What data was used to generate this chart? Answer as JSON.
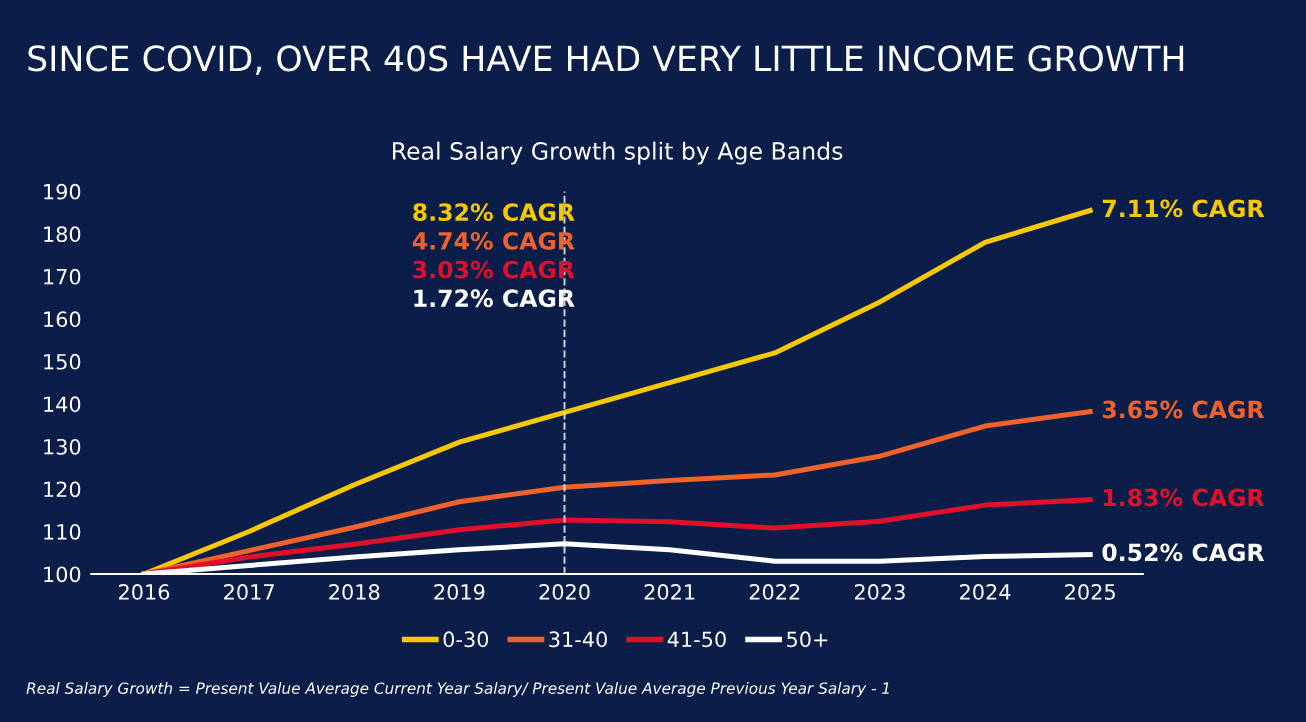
{
  "chart_data": {
    "type": "line",
    "title": "SINCE COVID, OVER 40S HAVE HAD VERY LITTLE INCOME GROWTH",
    "subtitle": "Real Salary Growth split by Age Bands",
    "x": [
      2016,
      2017,
      2018,
      2019,
      2020,
      2021,
      2022,
      2023,
      2024,
      2025
    ],
    "xlim": [
      2015.5,
      2025.5
    ],
    "xticks": [
      2016,
      2017,
      2018,
      2019,
      2020,
      2021,
      2022,
      2023,
      2024,
      2025
    ],
    "ylim": [
      100,
      190
    ],
    "yticks": [
      100,
      110,
      120,
      130,
      140,
      150,
      160,
      170,
      180,
      190
    ],
    "series": [
      {
        "name": "0-30",
        "color": "#f5c800",
        "values": [
          100,
          110,
          121,
          131,
          138,
          145,
          152,
          164,
          178,
          185.5
        ]
      },
      {
        "name": "31-40",
        "color": "#f0622a",
        "values": [
          100,
          105.5,
          111,
          117,
          120.4,
          122,
          123.3,
          127.7,
          134.8,
          138.2
        ]
      },
      {
        "name": "41-50",
        "color": "#e0102a",
        "values": [
          100,
          104,
          107,
          110.4,
          112.7,
          112.3,
          110.8,
          112.4,
          116.2,
          117.5
        ]
      },
      {
        "name": "50+",
        "color": "#ffffff",
        "values": [
          100,
          102,
          104,
          105.7,
          107.1,
          105.7,
          103,
          103,
          104.1,
          104.6
        ]
      }
    ],
    "ref_lines": [
      {
        "axis": "x",
        "value": 2020,
        "color": "#ffffff",
        "line_style": "dashed"
      }
    ],
    "annotations": [
      "8.32% CAGR",
      "4.74% CAGR",
      "3.03% CAGR",
      "1.72% CAGR",
      "7.11% CAGR",
      "3.65% CAGR",
      "1.83% CAGR",
      "0.52% CAGR",
      "Real Salary Growth = Present Value Average Current Year Salary/ Present Value Average Previous Year Salary - 1"
    ],
    "legend": "bottom",
    "grid": false,
    "marker": "none",
    "line_style": "solid"
  }
}
